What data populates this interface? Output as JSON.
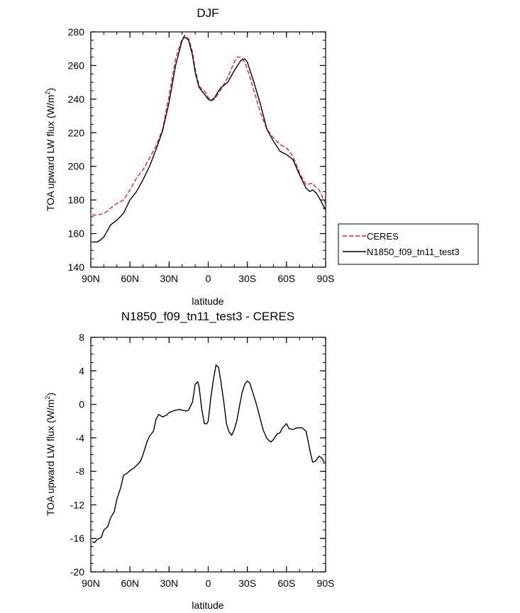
{
  "chart_data": [
    {
      "type": "line",
      "title": "DJF",
      "xlabel": "latitude",
      "ylabel": "TOA upward LW flux (W/m",
      "ylabel_sup": "2",
      "ylabel_close": ")",
      "xlim": [
        90,
        -90
      ],
      "ylim": [
        140,
        280
      ],
      "x_ticks": [
        {
          "value": 90,
          "label": "90N"
        },
        {
          "value": 60,
          "label": "60N"
        },
        {
          "value": 30,
          "label": "30N"
        },
        {
          "value": 0,
          "label": "0"
        },
        {
          "value": -30,
          "label": "30S"
        },
        {
          "value": -60,
          "label": "60S"
        },
        {
          "value": -90,
          "label": "90S"
        }
      ],
      "y_ticks": [
        140,
        160,
        180,
        200,
        220,
        240,
        260,
        280
      ],
      "legend": {
        "placement": "right",
        "entries": [
          {
            "name": "CERES",
            "color": "#e0212b",
            "dash": "dashed"
          },
          {
            "name": "N1850_f09_tn11_test3",
            "color": "#000000",
            "dash": "solid"
          }
        ]
      },
      "series": [
        {
          "name": "CERES",
          "color": "#e0212b",
          "dash": "dashed",
          "x": [
            89,
            85,
            80,
            78,
            75,
            70,
            65,
            60,
            55,
            50,
            45,
            40,
            35,
            30,
            25,
            20,
            18,
            15,
            12,
            10,
            7,
            5,
            2,
            0,
            -2,
            -5,
            -10,
            -15,
            -20,
            -22,
            -25,
            -28,
            -30,
            -35,
            -40,
            -45,
            -50,
            -55,
            -60,
            -65,
            -70,
            -75,
            -80,
            -82,
            -85,
            -88,
            -90
          ],
          "values": [
            171,
            171,
            172,
            173,
            175,
            178,
            180,
            186,
            193,
            198,
            205,
            212,
            222,
            242,
            264,
            276,
            278,
            276,
            268,
            258,
            248,
            246,
            244,
            241,
            239,
            240,
            246,
            253,
            262,
            265,
            265,
            262,
            258,
            245,
            232,
            222,
            217,
            213,
            211,
            206,
            196,
            189,
            190,
            188,
            186,
            181,
            178
          ]
        },
        {
          "name": "N1850_f09_tn11_test3",
          "color": "#000000",
          "dash": "solid",
          "x": [
            89,
            85,
            83,
            80,
            77,
            75,
            70,
            65,
            60,
            55,
            50,
            45,
            40,
            35,
            30,
            25,
            20,
            18,
            15,
            12,
            10,
            7,
            5,
            2,
            0,
            -2,
            -5,
            -8,
            -10,
            -15,
            -20,
            -25,
            -28,
            -30,
            -35,
            -40,
            -45,
            -50,
            -55,
            -60,
            -65,
            -70,
            -75,
            -78,
            -80,
            -83,
            -86,
            -90
          ],
          "values": [
            155,
            155,
            156,
            158,
            162,
            165,
            168,
            172,
            180,
            185,
            192,
            200,
            210,
            221,
            238,
            260,
            275,
            277,
            275,
            266,
            256,
            247,
            245,
            242,
            240,
            239,
            241,
            245,
            247,
            250,
            257,
            263,
            264,
            262,
            250,
            237,
            222,
            215,
            209,
            207,
            204,
            195,
            187,
            185,
            186,
            184,
            180,
            174
          ]
        }
      ]
    },
    {
      "type": "line",
      "title": "N1850_f09_tn11_test3 - CERES",
      "xlabel": "latitude",
      "ylabel": "TOA upward LW flux (W/m",
      "ylabel_sup": "2",
      "ylabel_close": ")",
      "xlim": [
        90,
        -90
      ],
      "ylim": [
        -20,
        8
      ],
      "x_ticks": [
        {
          "value": 90,
          "label": "90N"
        },
        {
          "value": 60,
          "label": "60N"
        },
        {
          "value": 30,
          "label": "30N"
        },
        {
          "value": 0,
          "label": "0"
        },
        {
          "value": -30,
          "label": "30S"
        },
        {
          "value": -60,
          "label": "60S"
        },
        {
          "value": -90,
          "label": "90S"
        }
      ],
      "y_ticks": [
        -20,
        -16,
        -12,
        -8,
        -4,
        0,
        4,
        8
      ],
      "series": [
        {
          "name": "N1850_f09_tn11_test3 - CERES",
          "color": "#000000",
          "dash": "solid",
          "x": [
            89,
            87,
            85,
            82,
            80,
            77,
            75,
            72,
            70,
            67,
            65,
            62,
            60,
            57,
            55,
            52,
            50,
            47,
            45,
            42,
            40,
            38,
            35,
            32,
            30,
            27,
            25,
            22,
            20,
            17,
            15,
            12,
            10,
            8,
            7,
            5,
            3,
            1,
            0,
            -2,
            -4,
            -6,
            -8,
            -10,
            -12,
            -14,
            -16,
            -18,
            -20,
            -22,
            -24,
            -26,
            -28,
            -30,
            -32,
            -34,
            -36,
            -38,
            -40,
            -42,
            -45,
            -48,
            -50,
            -53,
            -55,
            -57,
            -60,
            -62,
            -65,
            -68,
            -70,
            -72,
            -75,
            -78,
            -80,
            -82,
            -85,
            -87,
            -89
          ],
          "values": [
            -16.4,
            -16.5,
            -16.1,
            -15.9,
            -15.0,
            -14.6,
            -13.6,
            -12.8,
            -11.3,
            -9.9,
            -8.5,
            -8.2,
            -7.9,
            -7.6,
            -7.3,
            -6.8,
            -6.0,
            -4.5,
            -3.8,
            -3.2,
            -1.8,
            -1.2,
            -1.5,
            -1.3,
            -1.0,
            -0.8,
            -0.7,
            -0.6,
            -0.7,
            -0.8,
            -0.7,
            0.3,
            2.4,
            2.7,
            2.1,
            -0.5,
            -2.3,
            -2.3,
            -2.0,
            0.8,
            3.0,
            4.7,
            4.4,
            2.4,
            0.2,
            -2.3,
            -3.3,
            -3.7,
            -3.0,
            -1.9,
            -0.2,
            1.4,
            2.4,
            2.8,
            2.5,
            1.5,
            0.5,
            -0.6,
            -1.8,
            -3.0,
            -4.1,
            -4.5,
            -4.2,
            -3.5,
            -3.4,
            -2.8,
            -2.3,
            -2.9,
            -3.0,
            -2.8,
            -2.8,
            -2.8,
            -3.2,
            -5.5,
            -6.9,
            -6.8,
            -6.2,
            -6.4,
            -6.9
          ]
        }
      ]
    }
  ]
}
